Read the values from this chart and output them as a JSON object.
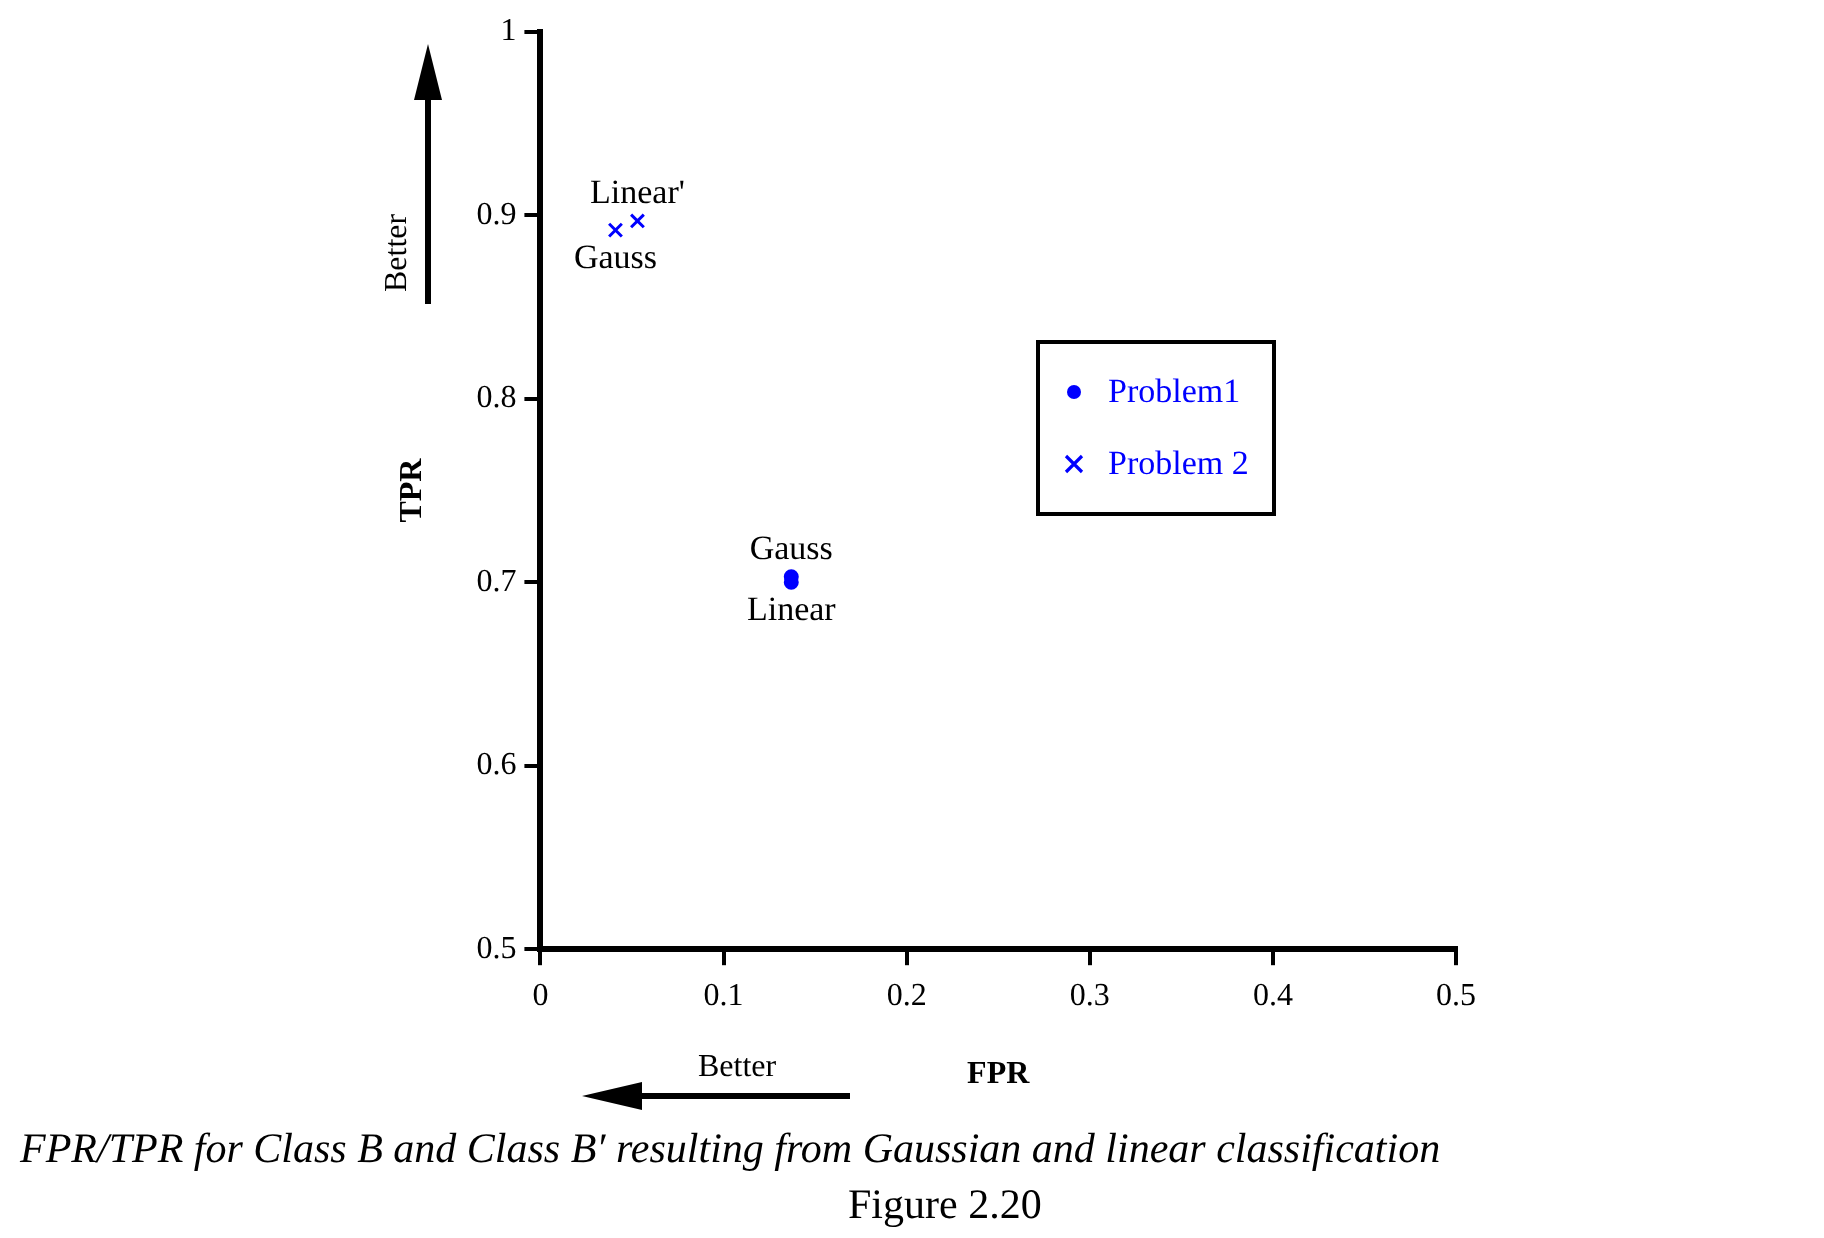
{
  "chart_data": {
    "type": "scatter",
    "xlabel": "FPR",
    "ylabel": "TPR",
    "xlim": [
      0,
      0.5
    ],
    "xticks": [
      0,
      0.1,
      0.2,
      0.3,
      0.4,
      0.5
    ],
    "ylim": [
      0.5,
      1
    ],
    "yticks": [
      0.5,
      0.6,
      0.7,
      0.8,
      0.9,
      1
    ],
    "grid": false,
    "legend": "right",
    "series": [
      {
        "name": "Problem1",
        "color": "#0000ff",
        "marker": "circle",
        "x": [
          0.137,
          0.137
        ],
        "values": [
          0.703,
          0.7
        ]
      },
      {
        "name": "Problem 2",
        "color": "#0000ff",
        "marker": "cross",
        "x": [
          0.041,
          0.053
        ],
        "values": [
          0.892,
          0.897
        ]
      }
    ],
    "annotations": [
      {
        "text": "Gauss",
        "x": 0.137,
        "y": 0.703
      },
      {
        "text": "Linear",
        "x": 0.137,
        "y": 0.7
      },
      {
        "text": "Gauss",
        "x": 0.041,
        "y": 0.892
      },
      {
        "text": "Linear'",
        "x": 0.053,
        "y": 0.897
      },
      "Better",
      "Better",
      "FPR/TPR for Class B and Class B′ resulting from Gaussian and linear classification",
      "Figure 2.20"
    ]
  }
}
